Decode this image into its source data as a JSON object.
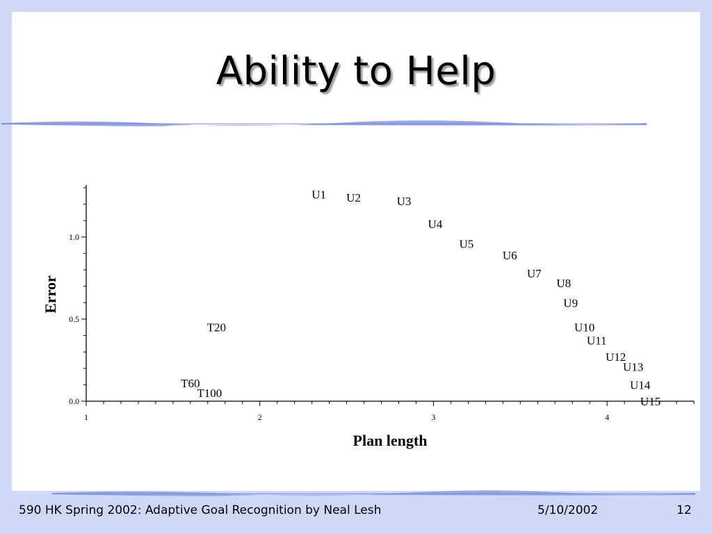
{
  "slide": {
    "title": "Ability to Help",
    "footer_left": "590 HK Spring 2002: Adaptive Goal Recognition by Neal Lesh",
    "footer_date": "5/10/2002",
    "footer_page": "12",
    "background_color": "#cfd8f6",
    "rule_color": "#8f9ee0"
  },
  "chart_data": {
    "type": "scatter",
    "title": "",
    "xlabel": "Plan length",
    "ylabel": "Error",
    "xlim": [
      1,
      4.5
    ],
    "ylim": [
      0,
      1.3
    ],
    "xticks": [
      {
        "value": 1,
        "label": "1"
      },
      {
        "value": 2,
        "label": "2"
      },
      {
        "value": 3,
        "label": "3"
      },
      {
        "value": 4,
        "label": "4"
      }
    ],
    "yticks": [
      {
        "value": 0.0,
        "label": "0.0"
      },
      {
        "value": 0.5,
        "label": "0.5"
      },
      {
        "value": 1.0,
        "label": "1.0"
      }
    ],
    "grid": false,
    "legend": "none",
    "points": [
      {
        "label": "U1",
        "x": 2.34,
        "y": 1.26
      },
      {
        "label": "U2",
        "x": 2.54,
        "y": 1.24
      },
      {
        "label": "U3",
        "x": 2.83,
        "y": 1.22
      },
      {
        "label": "U4",
        "x": 3.01,
        "y": 1.08
      },
      {
        "label": "U5",
        "x": 3.19,
        "y": 0.96
      },
      {
        "label": "U6",
        "x": 3.44,
        "y": 0.89
      },
      {
        "label": "U7",
        "x": 3.58,
        "y": 0.78
      },
      {
        "label": "U8",
        "x": 3.75,
        "y": 0.72
      },
      {
        "label": "U9",
        "x": 3.79,
        "y": 0.6
      },
      {
        "label": "U10",
        "x": 3.87,
        "y": 0.45
      },
      {
        "label": "U11",
        "x": 3.94,
        "y": 0.37
      },
      {
        "label": "U12",
        "x": 4.05,
        "y": 0.27
      },
      {
        "label": "U13",
        "x": 4.15,
        "y": 0.21
      },
      {
        "label": "U14",
        "x": 4.19,
        "y": 0.1
      },
      {
        "label": "U15",
        "x": 4.25,
        "y": 0.0
      },
      {
        "label": "T20",
        "x": 1.75,
        "y": 0.45
      },
      {
        "label": "T60",
        "x": 1.6,
        "y": 0.11
      },
      {
        "label": "T100",
        "x": 1.71,
        "y": 0.05
      }
    ]
  }
}
